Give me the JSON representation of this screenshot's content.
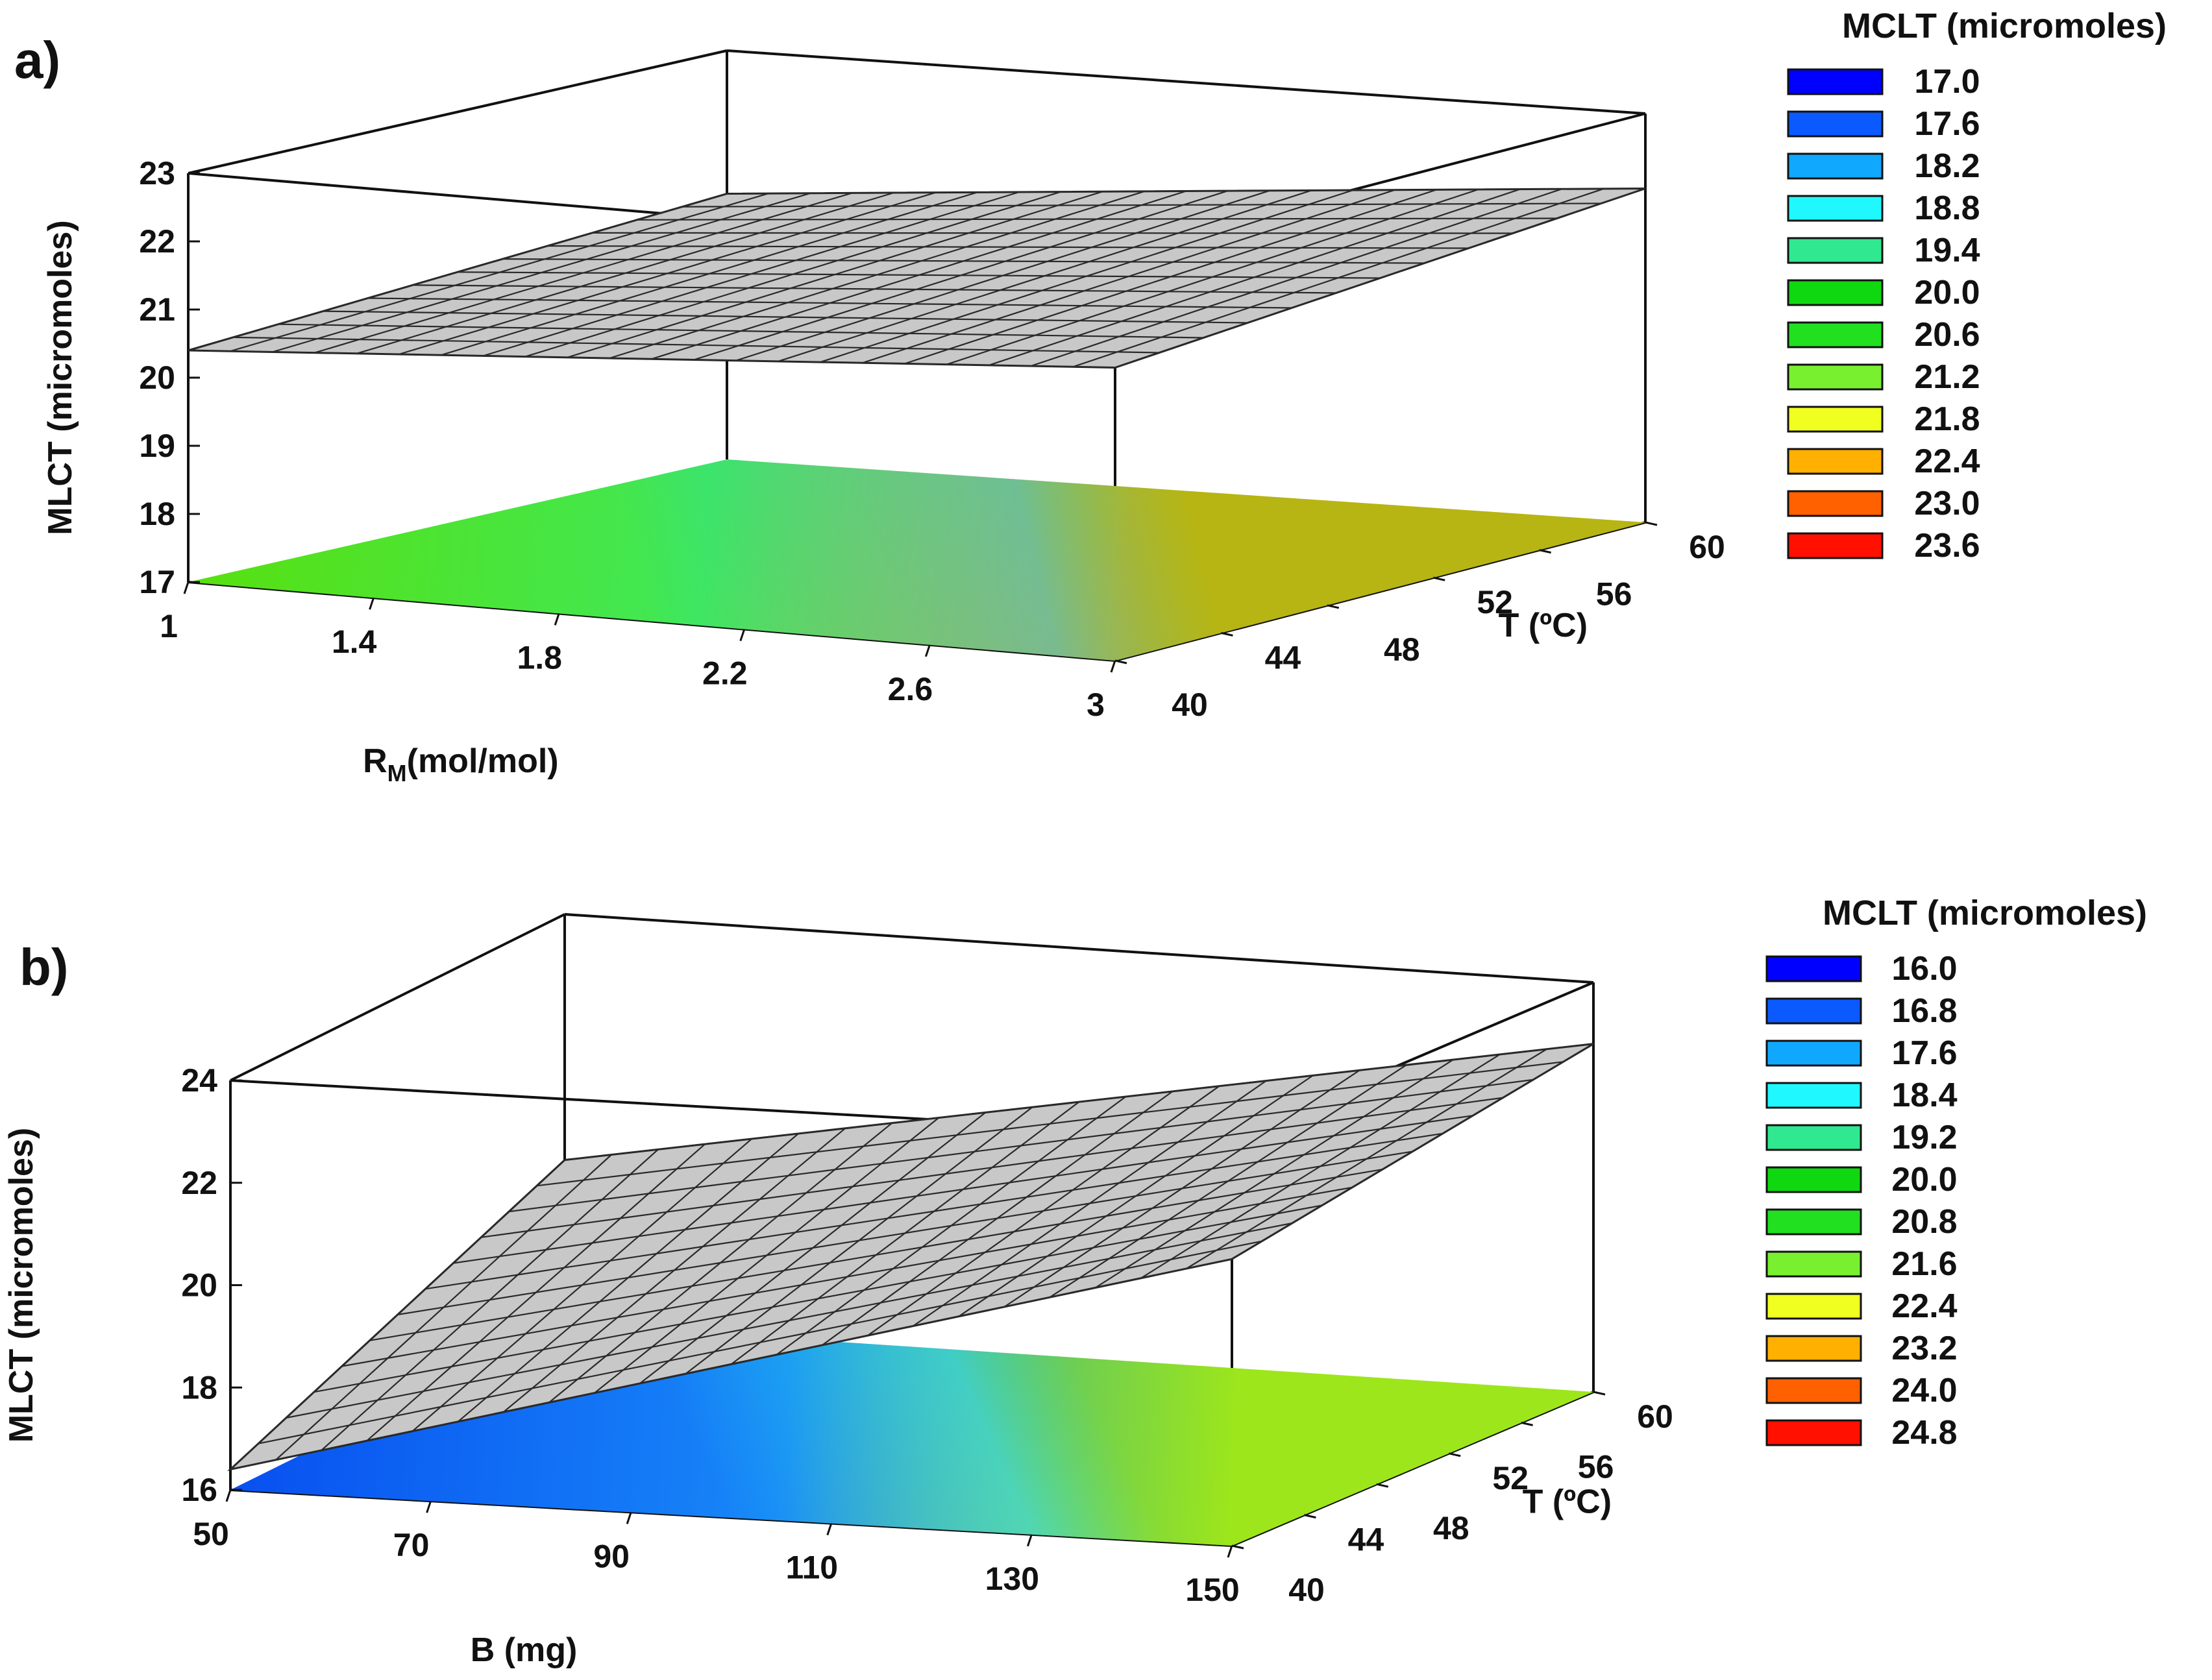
{
  "chart_data": [
    {
      "type": "surface3d",
      "panel_label": "a)",
      "x_axis": {
        "label_main": "R",
        "label_sub": "M",
        "label_unit": "(mol/mol)",
        "range": [
          1,
          3
        ],
        "ticks": [
          "1",
          "1.4",
          "1.8",
          "2.2",
          "2.6",
          "3"
        ]
      },
      "y_axis": {
        "label": "T (ºC)",
        "range": [
          40,
          60
        ],
        "ticks": [
          "40",
          "44",
          "48",
          "52",
          "56",
          "60"
        ]
      },
      "z_axis": {
        "label": "MLCT (micromoles)",
        "range": [
          17,
          23
        ],
        "ticks": [
          "17",
          "18",
          "19",
          "20",
          "21",
          "22",
          "23"
        ]
      },
      "surface_corners": {
        "x1_t40": 20.4,
        "x3_t40": 21.3,
        "x1_t60": 20.9,
        "x3_t60": 21.9
      },
      "floor_contour_colors": {
        "x1_t40": "#58e010",
        "x3_t40": "#ffa010",
        "x1_t60": "#40e858",
        "x3_t60": "#30dc18",
        "mid_back": "#22c8f0"
      },
      "legend": {
        "title": "MCLT (micromoles)",
        "items": [
          {
            "value": "17.0",
            "color": "#0000ff"
          },
          {
            "value": "17.6",
            "color": "#0a5aff"
          },
          {
            "value": "18.2",
            "color": "#10a8ff"
          },
          {
            "value": "18.8",
            "color": "#20f8ff"
          },
          {
            "value": "19.4",
            "color": "#30e890"
          },
          {
            "value": "20.0",
            "color": "#10d810"
          },
          {
            "value": "20.6",
            "color": "#20e020"
          },
          {
            "value": "21.2",
            "color": "#78f030"
          },
          {
            "value": "21.8",
            "color": "#f0ff20"
          },
          {
            "value": "22.4",
            "color": "#ffb000"
          },
          {
            "value": "23.0",
            "color": "#ff6000"
          },
          {
            "value": "23.6",
            "color": "#ff1000"
          }
        ]
      }
    },
    {
      "type": "surface3d",
      "panel_label": "b)",
      "x_axis": {
        "label_main": "B (mg)",
        "label_sub": "",
        "label_unit": "",
        "range": [
          50,
          150
        ],
        "ticks": [
          "50",
          "70",
          "90",
          "110",
          "130",
          "150"
        ]
      },
      "y_axis": {
        "label": "T (ºC)",
        "range": [
          40,
          60
        ],
        "ticks": [
          "40",
          "44",
          "48",
          "52",
          "56",
          "60"
        ]
      },
      "z_axis": {
        "label": "MLCT (micromoles)",
        "range": [
          16,
          24
        ],
        "ticks": [
          "16",
          "18",
          "20",
          "22",
          "24"
        ]
      },
      "surface_corners": {
        "x1_t40": 16.4,
        "x3_t40": 21.6,
        "x1_t60": 19.2,
        "x3_t60": 22.8
      },
      "floor_contour_colors": {
        "x1_t40": "#0850f0",
        "x3_t40": "#d8ee18",
        "x1_t60": "#1888f8",
        "x3_t60": "#30d820",
        "mid_back": "#28e8e0"
      },
      "legend": {
        "title": "MCLT (micromoles)",
        "items": [
          {
            "value": "16.0",
            "color": "#0000ff"
          },
          {
            "value": "16.8",
            "color": "#0a5aff"
          },
          {
            "value": "17.6",
            "color": "#10a8ff"
          },
          {
            "value": "18.4",
            "color": "#20f8ff"
          },
          {
            "value": "19.2",
            "color": "#30e890"
          },
          {
            "value": "20.0",
            "color": "#10d810"
          },
          {
            "value": "20.8",
            "color": "#20e020"
          },
          {
            "value": "21.6",
            "color": "#78f030"
          },
          {
            "value": "22.4",
            "color": "#f0ff20"
          },
          {
            "value": "23.2",
            "color": "#ffb000"
          },
          {
            "value": "24.0",
            "color": "#ff6000"
          },
          {
            "value": "24.8",
            "color": "#ff1000"
          }
        ]
      }
    }
  ]
}
